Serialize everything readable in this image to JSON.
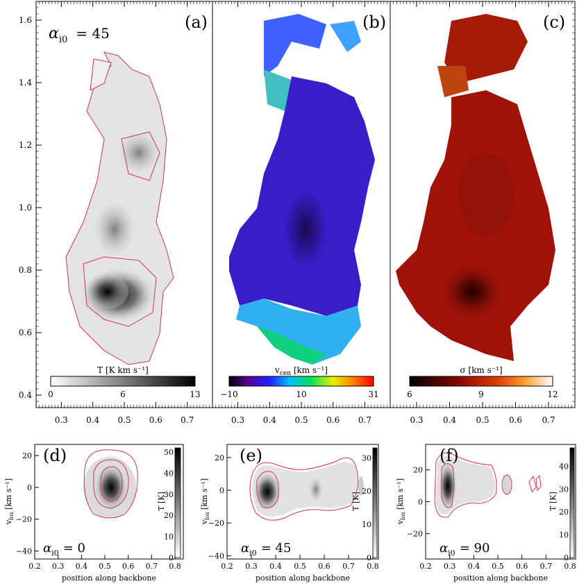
{
  "figure": {
    "colors": {
      "contour": "#d6305a",
      "frame": "#000000",
      "panel_b_fill": "#3a1cc8",
      "panel_c_fill": "#a01208"
    },
    "top_panels": [
      {
        "id": "a",
        "label": "(a)",
        "annotation_symbol": "α",
        "annotation_sub": "i0",
        "annotation_value": "=  45",
        "colorbar": {
          "label": "T [K km s⁻¹]",
          "ticks": [
            "0",
            "6",
            "13"
          ],
          "colormap": "gray"
        }
      },
      {
        "id": "b",
        "label": "(b)",
        "colorbar": {
          "label": "v",
          "label_sub": "cen",
          "label_tail": " [km s⁻¹]",
          "ticks": [
            "−10",
            "10",
            "31"
          ],
          "colormap": "rainbow"
        }
      },
      {
        "id": "c",
        "label": "(c)",
        "colorbar": {
          "label": "σ [km s⁻¹]",
          "ticks": [
            "6",
            "9",
            "12"
          ],
          "colormap": "heat"
        }
      }
    ],
    "bottom_panels": [
      {
        "id": "d",
        "label": "(d)",
        "alpha_symbol": "α",
        "alpha_sub": "i0",
        "alpha_value": "=   0",
        "xlabel": "position along backbone",
        "ylabel": "v",
        "ylabel_sub": "los",
        "ylabel_tail": " [km s⁻¹]",
        "colorbar_label": "T [K]",
        "colorbar_ticks": [
          "0",
          "10",
          "20",
          "30",
          "40",
          "50"
        ]
      },
      {
        "id": "e",
        "label": "(e)",
        "alpha_symbol": "α",
        "alpha_sub": "i0",
        "alpha_value": "=  45",
        "xlabel": "position along backbone",
        "ylabel": "v",
        "ylabel_sub": "los",
        "ylabel_tail": " [km s⁻¹]",
        "colorbar_label": "T [K]",
        "colorbar_ticks": [
          "0",
          "10",
          "20",
          "30"
        ]
      },
      {
        "id": "f",
        "label": "(f)",
        "alpha_symbol": "α",
        "alpha_sub": "i0",
        "alpha_value": "=  90",
        "xlabel": "position along backbone",
        "ylabel": "v",
        "ylabel_sub": "los",
        "ylabel_tail": " [km s⁻¹]",
        "colorbar_label": "T [K]",
        "colorbar_ticks": [
          "0",
          "10",
          "20",
          "30",
          "40"
        ]
      }
    ]
  },
  "chart_data": [
    {
      "type": "heatmap",
      "panel": "a",
      "xlim": [
        0.22,
        0.78
      ],
      "ylim": [
        0.36,
        1.66
      ],
      "xticks": [
        0.3,
        0.4,
        0.5,
        0.6,
        0.7
      ],
      "yticks": [
        0.4,
        0.6,
        0.8,
        1.0,
        1.2,
        1.4,
        1.6
      ],
      "colorbar_range": [
        0,
        13
      ]
    },
    {
      "type": "heatmap",
      "panel": "b",
      "xlim": [
        0.22,
        0.78
      ],
      "ylim": [
        0.36,
        1.66
      ],
      "xticks": [
        0.3,
        0.4,
        0.5,
        0.6,
        0.7
      ],
      "colorbar_range": [
        -10,
        31
      ]
    },
    {
      "type": "heatmap",
      "panel": "c",
      "xlim": [
        0.22,
        0.78
      ],
      "ylim": [
        0.36,
        1.66
      ],
      "xticks": [
        0.3,
        0.4,
        0.5,
        0.6,
        0.7
      ],
      "colorbar_range": [
        6,
        12
      ]
    },
    {
      "type": "heatmap",
      "panel": "d",
      "xlim": [
        0.2,
        0.8
      ],
      "ylim": [
        -45,
        27
      ],
      "xticks": [
        0.2,
        0.3,
        0.4,
        0.5,
        0.6,
        0.7,
        0.8
      ],
      "yticks": [
        -40,
        -20,
        0,
        20
      ],
      "colorbar_range": [
        0,
        52
      ]
    },
    {
      "type": "heatmap",
      "panel": "e",
      "xlim": [
        0.2,
        0.8
      ],
      "ylim": [
        -42,
        28
      ],
      "xticks": [
        0.2,
        0.3,
        0.4,
        0.5,
        0.6,
        0.7,
        0.8
      ],
      "yticks": [
        -40,
        -20,
        0,
        20
      ],
      "colorbar_range": [
        0,
        33
      ]
    },
    {
      "type": "heatmap",
      "panel": "f",
      "xlim": [
        0.2,
        0.8
      ],
      "ylim": [
        -36,
        36
      ],
      "xticks": [
        0.2,
        0.3,
        0.4,
        0.5,
        0.6,
        0.7,
        0.8
      ],
      "yticks": [
        -20,
        0,
        20
      ],
      "colorbar_range": [
        0,
        48
      ]
    }
  ]
}
